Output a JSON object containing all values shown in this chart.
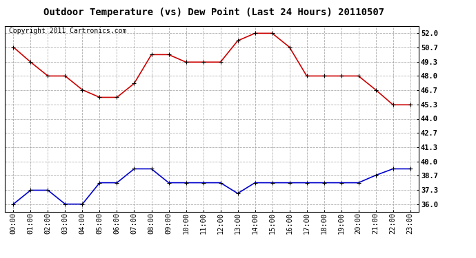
{
  "title": "Outdoor Temperature (vs) Dew Point (Last 24 Hours) 20110507",
  "copyright": "Copyright 2011 Cartronics.com",
  "x_labels": [
    "00:00",
    "01:00",
    "02:00",
    "03:00",
    "04:00",
    "05:00",
    "06:00",
    "07:00",
    "08:00",
    "09:00",
    "10:00",
    "11:00",
    "12:00",
    "13:00",
    "14:00",
    "15:00",
    "16:00",
    "17:00",
    "18:00",
    "19:00",
    "20:00",
    "21:00",
    "22:00",
    "23:00"
  ],
  "temp_data": [
    50.7,
    49.3,
    48.0,
    48.0,
    46.7,
    46.0,
    46.0,
    47.3,
    50.0,
    50.0,
    49.3,
    49.3,
    49.3,
    51.3,
    52.0,
    52.0,
    50.7,
    48.0,
    48.0,
    48.0,
    48.0,
    46.7,
    45.3,
    45.3
  ],
  "dew_data": [
    36.0,
    37.3,
    37.3,
    36.0,
    36.0,
    38.0,
    38.0,
    39.3,
    39.3,
    38.0,
    38.0,
    38.0,
    38.0,
    37.0,
    38.0,
    38.0,
    38.0,
    38.0,
    38.0,
    38.0,
    38.0,
    38.7,
    39.3,
    39.3
  ],
  "temp_color": "#cc0000",
  "dew_color": "#0000cc",
  "background_color": "#ffffff",
  "grid_color": "#999999",
  "yticks": [
    36.0,
    37.3,
    38.7,
    40.0,
    41.3,
    42.7,
    44.0,
    45.3,
    46.7,
    48.0,
    49.3,
    50.7,
    52.0
  ],
  "ylim": [
    35.3,
    52.7
  ],
  "title_fontsize": 10,
  "copyright_fontsize": 7,
  "tick_fontsize": 7.5
}
